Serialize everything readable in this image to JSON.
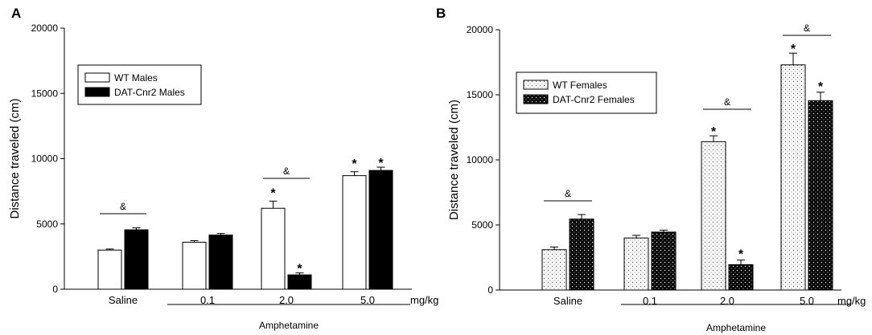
{
  "chart_data": [
    {
      "type": "bar",
      "panel_label": "A",
      "ylabel": "Distance traveled (cm)",
      "ylim": [
        0,
        20000
      ],
      "yticks": [
        "0",
        "5000",
        "10000",
        "15000",
        "20000"
      ],
      "categories": [
        "Saline",
        "0.1",
        "2.0",
        "5.0"
      ],
      "unit_label": "mg/kg",
      "group_label": "Amphetamine",
      "legend": [
        "WT Males",
        "DAT-Cnr2 Males"
      ],
      "series": [
        {
          "name": "WT Males",
          "values": [
            3000,
            3600,
            6200,
            8700
          ],
          "errors": [
            80,
            120,
            550,
            300
          ],
          "stars": [
            false,
            false,
            true,
            true
          ]
        },
        {
          "name": "DAT-Cnr2 Males",
          "values": [
            4550,
            4150,
            1100,
            9100
          ],
          "errors": [
            150,
            120,
            150,
            250
          ],
          "stars": [
            false,
            false,
            true,
            true
          ]
        }
      ],
      "ampersand_brackets": [
        0,
        2
      ],
      "annot_star": "*",
      "annot_amp": "&"
    },
    {
      "type": "bar",
      "panel_label": "B",
      "ylabel": "Distance traveled (cm)",
      "ylim": [
        0,
        20000
      ],
      "yticks": [
        "0",
        "5000",
        "10000",
        "15000",
        "20000"
      ],
      "categories": [
        "Saline",
        "0.1",
        "2.0",
        "5.0"
      ],
      "unit_label": "mg/kg",
      "group_label": "Amphetamine",
      "legend": [
        "WT Females",
        "DAT-Cnr2 Females"
      ],
      "series": [
        {
          "name": "WT Females",
          "values": [
            3100,
            4000,
            11400,
            17300
          ],
          "errors": [
            200,
            200,
            450,
            900
          ],
          "stars": [
            false,
            false,
            true,
            true
          ]
        },
        {
          "name": "DAT-Cnr2 Females",
          "values": [
            5450,
            4450,
            1950,
            14550
          ],
          "errors": [
            350,
            150,
            350,
            650
          ],
          "stars": [
            false,
            false,
            true,
            true
          ]
        }
      ],
      "ampersand_brackets": [
        0,
        2,
        3
      ],
      "annot_star": "*",
      "annot_amp": "&"
    }
  ]
}
